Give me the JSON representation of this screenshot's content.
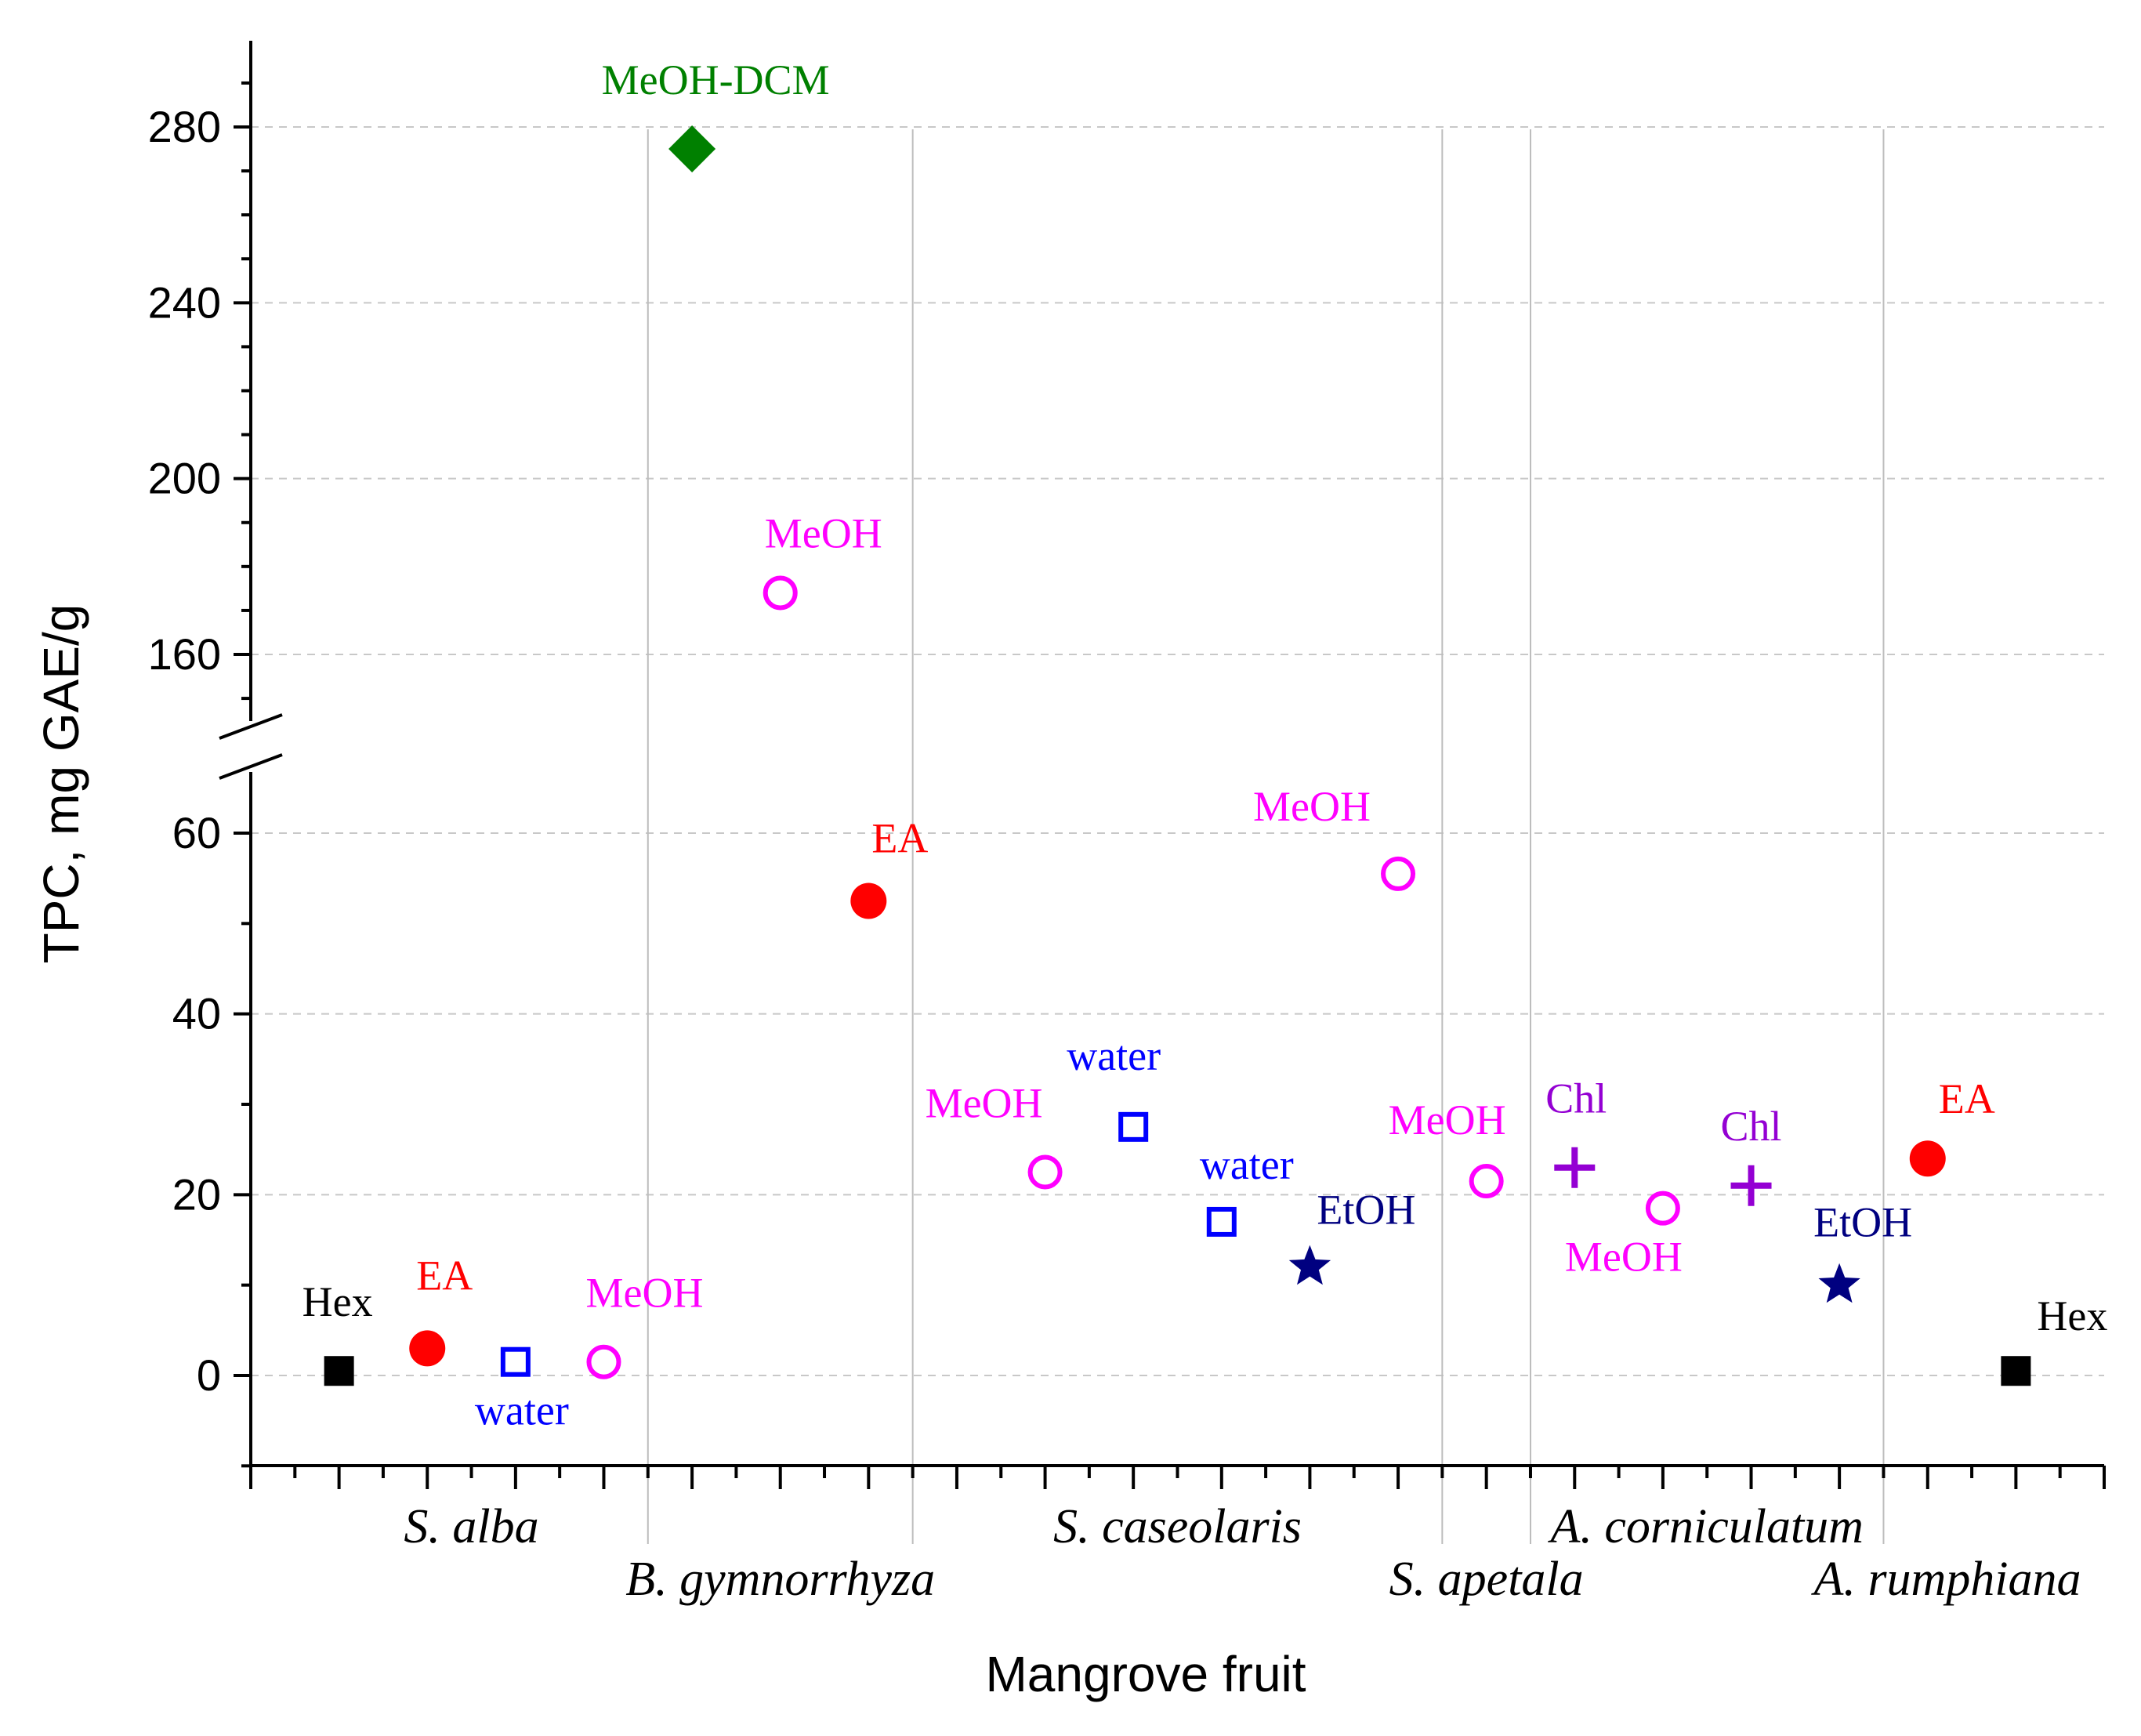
{
  "chart_data": {
    "type": "scatter",
    "title": "",
    "xlabel": "Mangrove fruit",
    "ylabel": "TPC, mg GAE/g",
    "xlim": [
      0,
      21
    ],
    "ylim_lower": [
      -10,
      65
    ],
    "ylim_upper": [
      150,
      290
    ],
    "axis_break": true,
    "grid": "horizontal dashed",
    "yticks": [
      0,
      20,
      40,
      60,
      160,
      200,
      240,
      280
    ],
    "groups": [
      {
        "name": "S. alba",
        "range": [
          0.5,
          4.5
        ]
      },
      {
        "name": "B. gymnorrhyza",
        "range": [
          4.5,
          7.5
        ]
      },
      {
        "name": "S. caseolaris",
        "range": [
          7.5,
          13.5
        ]
      },
      {
        "name": "S. apetala",
        "range": [
          13.5,
          14.5
        ]
      },
      {
        "name": "A. corniculatum",
        "range": [
          14.5,
          18.5
        ]
      },
      {
        "name": "A. rumphiana",
        "range": [
          18.5,
          20.5
        ]
      }
    ],
    "points": [
      {
        "x": 1,
        "y": 0.5,
        "label": "Hex",
        "marker": "square-filled",
        "color": "#000000"
      },
      {
        "x": 2,
        "y": 3,
        "label": "EA",
        "marker": "circle-filled",
        "color": "#ff0000"
      },
      {
        "x": 3,
        "y": 1.5,
        "label": "water",
        "marker": "square-open",
        "color": "#0000ff"
      },
      {
        "x": 4,
        "y": 1.5,
        "label": "MeOH",
        "marker": "circle-open",
        "color": "#ff00ff"
      },
      {
        "x": 5,
        "y": 275,
        "label": "MeOH-DCM",
        "marker": "diamond-filled",
        "color": "#008000"
      },
      {
        "x": 6,
        "y": 174,
        "label": "MeOH",
        "marker": "circle-open",
        "color": "#ff00ff"
      },
      {
        "x": 7,
        "y": 52.5,
        "label": "EA",
        "marker": "circle-filled",
        "color": "#ff0000"
      },
      {
        "x": 9,
        "y": 22.5,
        "label": "MeOH",
        "marker": "circle-open",
        "color": "#ff00ff"
      },
      {
        "x": 10,
        "y": 27.5,
        "label": "water",
        "marker": "square-open",
        "color": "#0000ff"
      },
      {
        "x": 11,
        "y": 17,
        "label": "water",
        "marker": "square-open",
        "color": "#0000ff"
      },
      {
        "x": 12,
        "y": 12,
        "label": "EtOH",
        "marker": "star-filled",
        "color": "#000080"
      },
      {
        "x": 13,
        "y": 55.5,
        "label": "MeOH",
        "marker": "circle-open",
        "color": "#ff00ff"
      },
      {
        "x": 14,
        "y": 21.5,
        "label": "MeOH",
        "marker": "circle-open",
        "color": "#ff00ff"
      },
      {
        "x": 15,
        "y": 23,
        "label": "Chl",
        "marker": "plus",
        "color": "#9400d3"
      },
      {
        "x": 16,
        "y": 18.5,
        "label": "MeOH",
        "marker": "circle-open",
        "color": "#ff00ff"
      },
      {
        "x": 17,
        "y": 21,
        "label": "Chl",
        "marker": "plus",
        "color": "#9400d3"
      },
      {
        "x": 18,
        "y": 10,
        "label": "EtOH",
        "marker": "star-filled",
        "color": "#000080"
      },
      {
        "x": 19,
        "y": 24,
        "label": "EA",
        "marker": "circle-filled",
        "color": "#ff0000"
      },
      {
        "x": 20,
        "y": 0.5,
        "label": "Hex",
        "marker": "square-filled",
        "color": "#000000"
      }
    ]
  }
}
